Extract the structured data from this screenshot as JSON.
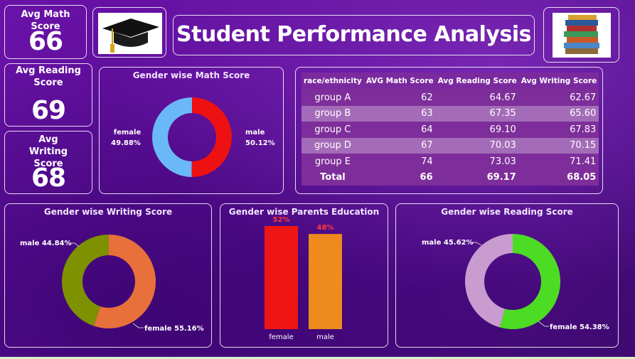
{
  "kpis": {
    "math": {
      "label": "Avg Math Score",
      "value": "66"
    },
    "reading": {
      "label": "Avg Reading Score",
      "value": "69"
    },
    "writing": {
      "label": "Avg Writing Score",
      "value": "68"
    }
  },
  "header": {
    "title": "Student Performance Analysis"
  },
  "icons": {
    "cap": "graduation-cap-icon",
    "books": "books-stack-icon"
  },
  "math_gender": {
    "title": "Gender wise Math Score",
    "female_label": "female",
    "female_pct": "49.88%",
    "male_label": "male",
    "male_pct": "50.12%",
    "female_value": 49.88,
    "male_value": 50.12,
    "female_color": "#6ab8f7",
    "male_color": "#ee1111"
  },
  "table": {
    "headers": [
      "race/ethnicity",
      "AVG Math Score",
      "Avg Reading Score",
      "Avg Writing Score"
    ],
    "rows": [
      [
        "group A",
        "62",
        "64.67",
        "62.67"
      ],
      [
        "group B",
        "63",
        "67.35",
        "65.60"
      ],
      [
        "group C",
        "64",
        "69.10",
        "67.83"
      ],
      [
        "group D",
        "67",
        "70.03",
        "70.15"
      ],
      [
        "group E",
        "74",
        "73.03",
        "71.41"
      ]
    ],
    "total": [
      "Total",
      "66",
      "69.17",
      "68.05"
    ]
  },
  "writing_gender": {
    "title": "Gender wise Writing Score",
    "male_label": "male 44.84%",
    "female_label": "female 55.16%",
    "male_value": 44.84,
    "female_value": 55.16,
    "male_color": "#7e9100",
    "female_color": "#e8703a"
  },
  "parents_education": {
    "title": "Gender wise Parents Education",
    "bars": [
      {
        "label": "female",
        "value": 52,
        "text": "52%",
        "color": "#f01515"
      },
      {
        "label": "male",
        "value": 48,
        "text": "48%",
        "color": "#ef8a1c"
      }
    ]
  },
  "reading_gender": {
    "title": "Gender wise Reading Score",
    "male_label": "male 45.62%",
    "female_label": "female 54.38%",
    "male_value": 45.62,
    "female_value": 54.38,
    "male_color": "#c99ccf",
    "female_color": "#4ddc24"
  }
}
